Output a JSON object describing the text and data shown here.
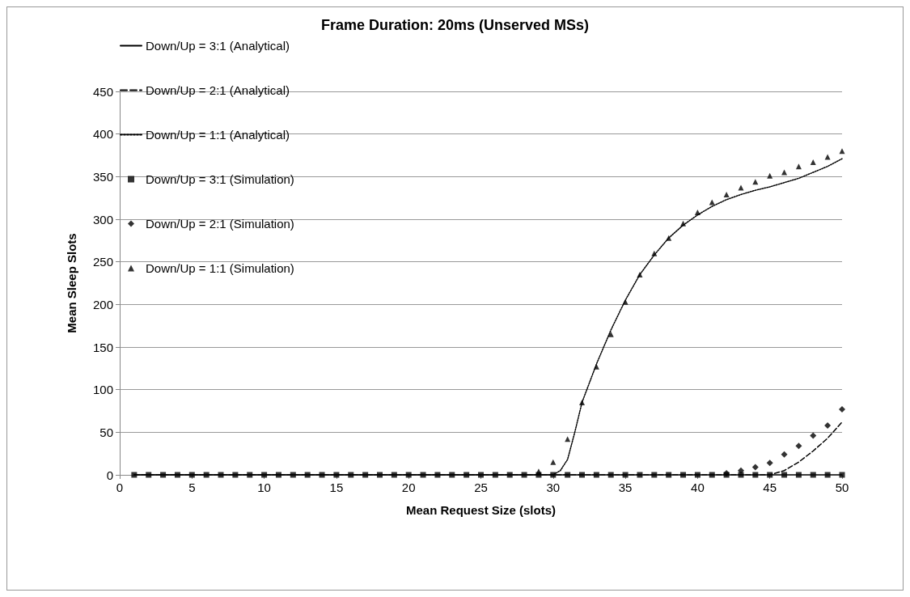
{
  "chart_data": {
    "type": "line",
    "title": "Frame Duration: 20ms (Unserved MSs)",
    "xlabel": "Mean Request Size (slots)",
    "ylabel": "Mean Sleep Slots",
    "x": [
      1,
      2,
      3,
      4,
      5,
      6,
      7,
      8,
      9,
      10,
      11,
      12,
      13,
      14,
      15,
      16,
      17,
      18,
      19,
      20,
      21,
      22,
      23,
      24,
      25,
      26,
      27,
      28,
      29,
      30,
      31,
      32,
      33,
      34,
      35,
      36,
      37,
      38,
      39,
      40,
      41,
      42,
      43,
      44,
      45,
      46,
      47,
      48,
      49,
      50
    ],
    "xlim": [
      0,
      50
    ],
    "xticks": [
      0,
      5,
      10,
      15,
      20,
      25,
      30,
      35,
      40,
      45,
      50
    ],
    "ylim": [
      0,
      450
    ],
    "yticks": [
      0,
      50,
      100,
      150,
      200,
      250,
      300,
      350,
      400,
      450
    ],
    "grid": "y",
    "legend": "top left",
    "series": [
      {
        "name": "Down/Up = 3:1 (Analytical)",
        "line_style": "solid",
        "marker": "none",
        "color": "#000000",
        "values": [
          0,
          0,
          0,
          0,
          0,
          0,
          0,
          0,
          0,
          0,
          0,
          0,
          0,
          0,
          0,
          0,
          0,
          0,
          0,
          0,
          0,
          0,
          0,
          0,
          0,
          0,
          0,
          0,
          0,
          0,
          0,
          0,
          0,
          0,
          0,
          0,
          0,
          0,
          0,
          0,
          0,
          0,
          0,
          0,
          0,
          0,
          0,
          0,
          0,
          0
        ]
      },
      {
        "name": "Down/Up = 2:1 (Analytical)",
        "line_style": "dashed",
        "marker": "none",
        "color": "#000000",
        "x": [
          1,
          45,
          46,
          47,
          48,
          49,
          50
        ],
        "values": [
          0,
          0,
          5,
          15,
          28,
          43,
          62
        ]
      },
      {
        "name": "Down/Up = 1:1 (Analytical)",
        "line_style": "dotted",
        "marker": "none",
        "color": "#000000",
        "x": [
          1,
          30,
          30.5,
          31,
          31.5,
          32,
          33,
          34,
          35,
          36,
          37,
          38,
          39,
          40,
          41,
          42,
          43,
          44,
          45,
          46,
          47,
          48,
          49,
          50
        ],
        "values": [
          0,
          0,
          5,
          18,
          50,
          85,
          130,
          170,
          205,
          235,
          258,
          278,
          293,
          305,
          315,
          323,
          329,
          334,
          338,
          343,
          348,
          355,
          362,
          371
        ]
      },
      {
        "name": "Down/Up = 3:1 (Simulation)",
        "type": "scatter",
        "marker": "square",
        "color": "#000000",
        "values": [
          0,
          0,
          0,
          0,
          0,
          0,
          0,
          0,
          0,
          0,
          0,
          0,
          0,
          0,
          0,
          0,
          0,
          0,
          0,
          0,
          0,
          0,
          0,
          0,
          0,
          0,
          0,
          0,
          0,
          0,
          0,
          0,
          0,
          0,
          0,
          0,
          0,
          0,
          0,
          0,
          0,
          0,
          0,
          0,
          0,
          0,
          0,
          0,
          0,
          0
        ]
      },
      {
        "name": "Down/Up = 2:1 (Simulation)",
        "type": "scatter",
        "marker": "diamond",
        "color": "#000000",
        "x": [
          42,
          43,
          44,
          45,
          46,
          47,
          48,
          49,
          50
        ],
        "values": [
          2,
          5,
          9,
          14,
          24,
          34,
          46,
          58,
          77
        ]
      },
      {
        "name": "Down/Up = 1:1 (Simulation)",
        "type": "scatter",
        "marker": "triangle",
        "color": "#000000",
        "x": [
          29,
          30,
          31,
          32,
          33,
          34,
          35,
          36,
          37,
          38,
          39,
          40,
          41,
          42,
          43,
          44,
          45,
          46,
          47,
          48,
          49,
          50
        ],
        "values": [
          4,
          15,
          42,
          85,
          127,
          165,
          203,
          235,
          260,
          278,
          295,
          308,
          320,
          329,
          337,
          344,
          351,
          355,
          362,
          367,
          373,
          380
        ]
      }
    ]
  }
}
